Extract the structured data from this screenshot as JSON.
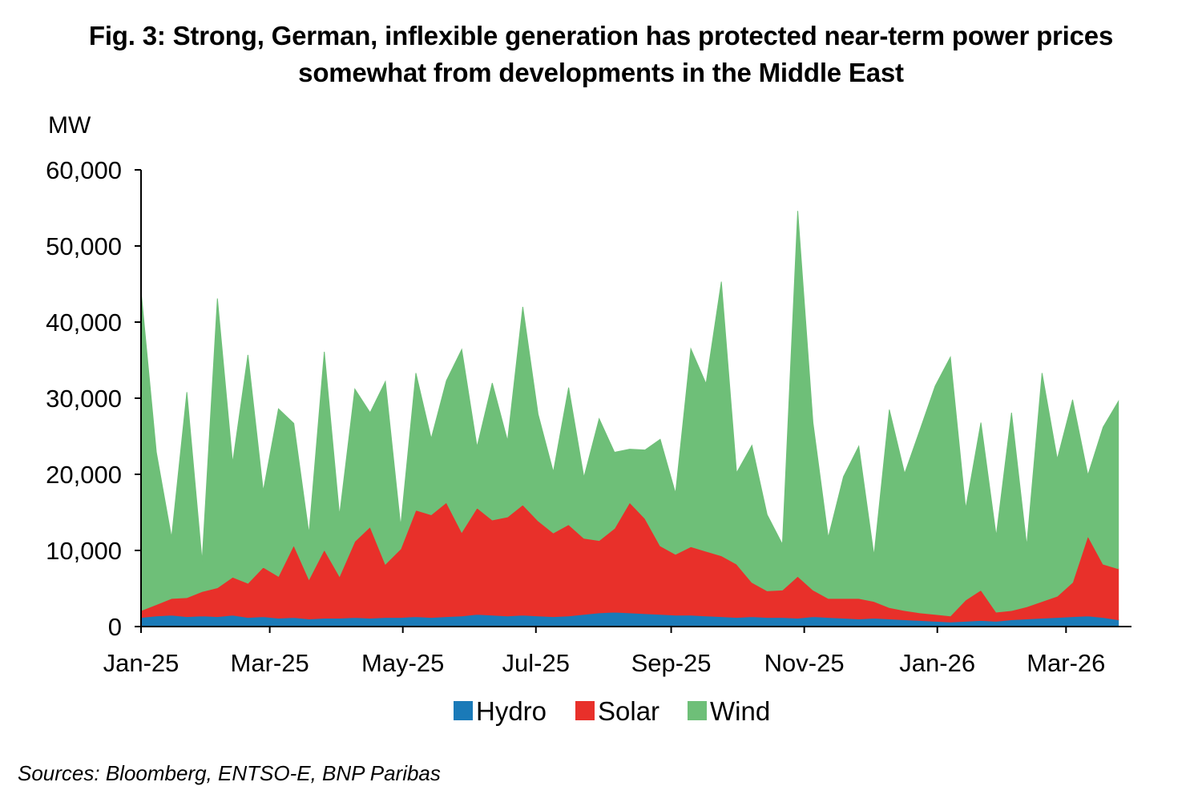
{
  "chart_data": {
    "type": "area",
    "stacked": true,
    "title": "Fig. 3: Strong, German, inflexible generation has protected near-term power prices",
    "title_line2": "somewhat from developments in the Middle East",
    "ylabel": "MW",
    "ylim": [
      0,
      60000
    ],
    "yticks": [
      0,
      10000,
      20000,
      30000,
      40000,
      50000,
      60000
    ],
    "ytick_labels": [
      "0",
      "10,000",
      "20,000",
      "30,000",
      "40,000",
      "50,000",
      "60,000"
    ],
    "xlim": [
      "2025-01-01",
      "2026-03-31"
    ],
    "xtick_labels": [
      "Jan-25",
      "Mar-25",
      "May-25",
      "Jul-25",
      "Sep-25",
      "Nov-25",
      "Jan-26",
      "Mar-26"
    ],
    "xtick_dates": [
      "2025-01-01",
      "2025-03-01",
      "2025-05-01",
      "2025-07-01",
      "2025-09-01",
      "2025-11-01",
      "2026-01-01",
      "2026-03-01"
    ],
    "legend_position": "bottom",
    "grid": false,
    "x": [
      "2025-01-01",
      "2025-01-08",
      "2025-01-15",
      "2025-01-22",
      "2025-01-29",
      "2025-02-05",
      "2025-02-12",
      "2025-02-19",
      "2025-02-26",
      "2025-03-05",
      "2025-03-12",
      "2025-03-19",
      "2025-03-26",
      "2025-04-02",
      "2025-04-09",
      "2025-04-16",
      "2025-04-23",
      "2025-04-30",
      "2025-05-07",
      "2025-05-14",
      "2025-05-21",
      "2025-05-28",
      "2025-06-04",
      "2025-06-11",
      "2025-06-18",
      "2025-06-25",
      "2025-07-02",
      "2025-07-09",
      "2025-07-16",
      "2025-07-23",
      "2025-07-30",
      "2025-08-06",
      "2025-08-13",
      "2025-08-20",
      "2025-08-27",
      "2025-09-03",
      "2025-09-10",
      "2025-09-17",
      "2025-09-24",
      "2025-10-01",
      "2025-10-08",
      "2025-10-15",
      "2025-10-22",
      "2025-10-29",
      "2025-11-05",
      "2025-11-12",
      "2025-11-19",
      "2025-11-26",
      "2025-12-03",
      "2025-12-10",
      "2025-12-17",
      "2025-12-24",
      "2025-12-31",
      "2026-01-07",
      "2026-01-14",
      "2026-01-21",
      "2026-01-28",
      "2026-02-04",
      "2026-02-11",
      "2026-02-18",
      "2026-02-25",
      "2026-03-04",
      "2026-03-11",
      "2026-03-18",
      "2026-03-25"
    ],
    "series": [
      {
        "name": "Hydro",
        "color": "#1a7ab8",
        "values": [
          1200,
          1400,
          1500,
          1300,
          1400,
          1300,
          1500,
          1200,
          1300,
          1100,
          1200,
          1000,
          1100,
          1100,
          1200,
          1100,
          1200,
          1200,
          1300,
          1200,
          1300,
          1400,
          1600,
          1500,
          1400,
          1500,
          1400,
          1300,
          1400,
          1600,
          1800,
          1900,
          1800,
          1700,
          1600,
          1500,
          1500,
          1400,
          1300,
          1200,
          1300,
          1200,
          1200,
          1100,
          1300,
          1200,
          1100,
          1000,
          1100,
          1000,
          900,
          800,
          700,
          600,
          700,
          800,
          700,
          900,
          1000,
          1100,
          1200,
          1300,
          1400,
          1200,
          900
        ]
      },
      {
        "name": "Solar",
        "color": "#e8302a",
        "values": [
          900,
          1500,
          2200,
          2500,
          3200,
          3800,
          5000,
          4500,
          6500,
          5500,
          9500,
          5200,
          9000,
          5500,
          10000,
          12000,
          7000,
          9000,
          14000,
          13500,
          15000,
          11000,
          14000,
          12500,
          13000,
          14500,
          12500,
          11000,
          12000,
          10000,
          9500,
          11000,
          14500,
          12500,
          9000,
          8000,
          9000,
          8500,
          8000,
          7000,
          4500,
          3500,
          3600,
          5500,
          3500,
          2500,
          2600,
          2700,
          2200,
          1500,
          1200,
          1000,
          900,
          800,
          2800,
          4000,
          1200,
          1200,
          1600,
          2200,
          2800,
          4500,
          10500,
          7000,
          6700
        ]
      },
      {
        "name": "Wind",
        "color": "#6ebf78",
        "values": [
          42000,
          20000,
          8000,
          27000,
          4000,
          38000,
          15000,
          30000,
          10000,
          22000,
          16000,
          6000,
          26000,
          8000,
          20000,
          15000,
          24000,
          3000,
          18000,
          10000,
          16000,
          24000,
          8000,
          18000,
          10000,
          26000,
          14000,
          8000,
          18000,
          8000,
          16000,
          10000,
          7000,
          9000,
          14000,
          8000,
          26000,
          22000,
          36000,
          12000,
          18000,
          10000,
          6000,
          48000,
          22000,
          8000,
          16000,
          20000,
          6000,
          26000,
          18000,
          24000,
          30000,
          34000,
          12000,
          22000,
          10000,
          26000,
          8000,
          30000,
          18000,
          24000,
          8000,
          18000,
          22000
        ]
      }
    ]
  },
  "legend": {
    "items": [
      {
        "label": "Hydro",
        "color": "#1a7ab8"
      },
      {
        "label": "Solar",
        "color": "#e8302a"
      },
      {
        "label": "Wind",
        "color": "#6ebf78"
      }
    ]
  },
  "source": "Sources: Bloomberg,  ENTSO-E, BNP Paribas"
}
